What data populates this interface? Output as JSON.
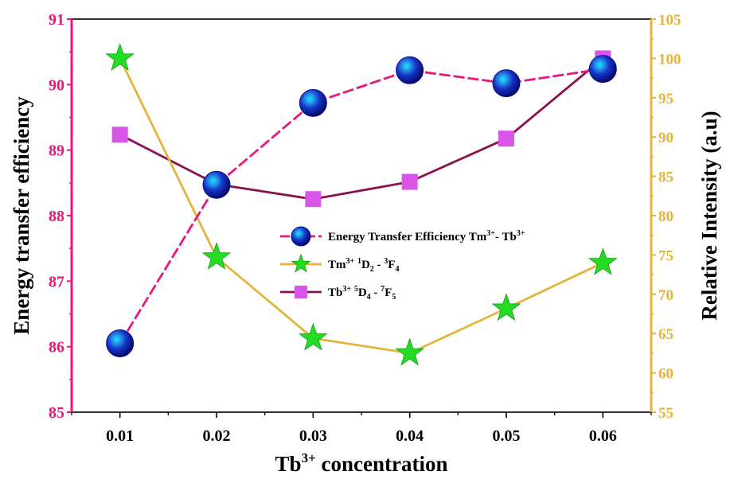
{
  "chart_data": {
    "type": "line",
    "x": [
      0.01,
      0.02,
      0.03,
      0.04,
      0.05,
      0.06
    ],
    "x_tick_labels": [
      "0.01",
      "0.02",
      "0.03",
      "0.04",
      "0.05",
      "0.06"
    ],
    "xlabel": {
      "base": "Tb",
      "sup": "3+",
      "rest": " concentration"
    },
    "ylabel_left": "Energy transfer efficiency",
    "ylabel_right": "Relative Intensity (a.u)",
    "ylim_left": [
      85,
      91
    ],
    "ylim_right": [
      55,
      105
    ],
    "y_left_ticks": [
      "85",
      "86",
      "87",
      "88",
      "89",
      "90",
      "91"
    ],
    "y_right_ticks": [
      "55",
      "60",
      "65",
      "70",
      "75",
      "80",
      "85",
      "90",
      "95",
      "100",
      "105"
    ],
    "grid": false,
    "legend_position": "center-right",
    "series": [
      {
        "axis": "left",
        "marker": "sphere",
        "line_style": "dashed",
        "line_color": "#e8177d",
        "marker_color": "#1030c0",
        "values": [
          86.05,
          88.47,
          89.72,
          90.22,
          90.02,
          90.24
        ],
        "legend": [
          {
            "t": "Energy Transfer Efficiency Tm"
          },
          {
            "t": "3+",
            "s": "sup"
          },
          {
            "t": "- Tb"
          },
          {
            "t": "3+",
            "s": "sup"
          }
        ]
      },
      {
        "axis": "right",
        "marker": "star",
        "line_style": "solid",
        "line_color": "#e4b43c",
        "marker_color": "#22dd22",
        "values": [
          100.0,
          74.7,
          64.4,
          62.5,
          68.2,
          74.0
        ],
        "legend": [
          {
            "t": "Tm"
          },
          {
            "t": "3+",
            "s": "sup"
          },
          {
            "t": " "
          },
          {
            "t": "1",
            "s": "sup"
          },
          {
            "t": "D"
          },
          {
            "t": "2",
            "s": "sub"
          },
          {
            "t": " - "
          },
          {
            "t": "3",
            "s": "sup"
          },
          {
            "t": "F"
          },
          {
            "t": "4",
            "s": "sub"
          }
        ]
      },
      {
        "axis": "right",
        "marker": "square",
        "line_style": "solid",
        "line_color": "#8b1050",
        "marker_color": "#d855e8",
        "values": [
          90.3,
          84.0,
          82.1,
          84.3,
          89.8,
          100.0
        ],
        "legend": [
          {
            "t": "Tb"
          },
          {
            "t": "3+",
            "s": "sup"
          },
          {
            "t": "  "
          },
          {
            "t": "5",
            "s": "sup"
          },
          {
            "t": "D"
          },
          {
            "t": "4",
            "s": "sub"
          },
          {
            "t": " - "
          },
          {
            "t": "7",
            "s": "sup"
          },
          {
            "t": "F"
          },
          {
            "t": "5",
            "s": "sub"
          }
        ]
      }
    ],
    "colors": {
      "left_axis": "#e8177d",
      "right_axis": "#e4b43c",
      "frame": "#000000"
    }
  }
}
